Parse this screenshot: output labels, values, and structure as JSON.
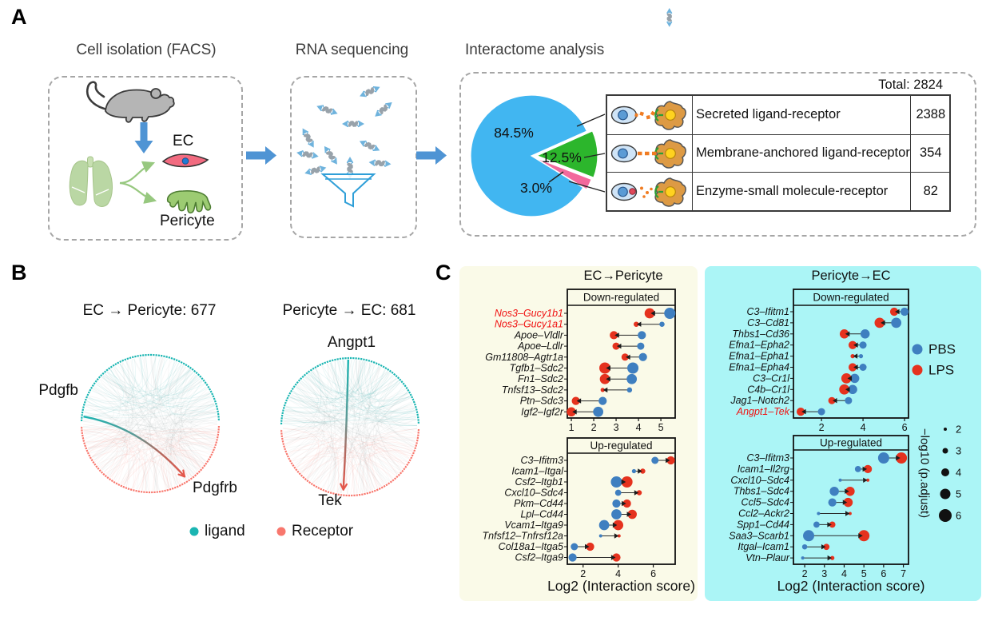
{
  "colors": {
    "pbs_blue": "#3f7fc0",
    "lps_red": "#e5321e",
    "ligand_teal": "#1ab5b2",
    "receptor_salmon": "#f8776d",
    "panel_yellow": "#fafae8",
    "panel_cyan": "#abf5f6",
    "pie_blue": "#41b6f1",
    "pie_green": "#2cb62c",
    "pie_pink": "#f2699c",
    "arrow_blue": "#4f94d4",
    "highlight_gene_red": "#f01212"
  },
  "panels": {
    "a": {
      "label": "A",
      "box1_title": "Cell isolation (FACS)",
      "box2_title": "RNA sequencing",
      "box3_title": "Interactome analysis",
      "ec_label": "EC",
      "pericyte_label": "Pericyte",
      "total_label": "Total: 2824",
      "table": [
        {
          "label": "Secreted ligand-receptor",
          "value": "2388",
          "icon": "secreted-ligand-receptor-icon"
        },
        {
          "label": "Membrane-anchored ligand-receptor",
          "value": "354",
          "icon": "membrane-anchored-ligand-receptor-icon"
        },
        {
          "label": "Enzyme-small molecule-receptor",
          "value": "82",
          "icon": "enzyme-small-molecule-receptor-icon"
        }
      ]
    },
    "b": {
      "label": "B",
      "legend": {
        "ligand": "ligand",
        "receptor": "Receptor"
      }
    },
    "c": {
      "label": "C",
      "left_title": "EC→Pericyte",
      "right_title": "Pericyte→EC",
      "legend": {
        "pbs": "PBS",
        "lps": "LPS",
        "size_title": "−log10 (p.adjust)",
        "sizes": [
          2,
          3,
          4,
          5,
          6
        ]
      }
    }
  },
  "chart_data": [
    {
      "type": "pie",
      "title": "Interactome analysis",
      "total": 2824,
      "categories": [
        "Secreted ligand-receptor",
        "Membrane-anchored ligand-receptor",
        "Enzyme-small molecule-receptor"
      ],
      "values": [
        2388,
        354,
        82
      ],
      "percents": [
        "84.5%",
        "12.5%",
        "3.0%"
      ],
      "colors": [
        "#41b6f1",
        "#2cb62c",
        "#f2699c"
      ]
    },
    {
      "type": "circos",
      "title": "EC → Pericyte: 677",
      "count": 677,
      "ligand": "Pdgfb",
      "receptor": "Pdgfrb"
    },
    {
      "type": "circos",
      "title": "Pericyte → EC: 681",
      "count": 681,
      "ligand": "Angpt1",
      "receptor": "Tek"
    },
    {
      "type": "dot",
      "group": "EC to Pericyte",
      "subtitle": "Down-regulated",
      "xlabel": "",
      "xticks": [
        1,
        2,
        3,
        4,
        5
      ],
      "xlim": [
        0.82,
        5.64
      ],
      "series_names": [
        "PBS",
        "LPS"
      ],
      "size_meaning": "-log10 (p.adjust)",
      "rows": [
        {
          "pair": "Nos3–Gucy1b1",
          "red": true,
          "pbs": 5.4,
          "lps": 4.5,
          "pbs_size": 6,
          "lps_size": 5.5
        },
        {
          "pair": "Nos3–Gucy1a1",
          "red": true,
          "pbs": 5.05,
          "lps": 3.9,
          "pbs_size": 3,
          "lps_size": 3
        },
        {
          "pair": "Apoe–Vldlr",
          "red": false,
          "pbs": 4.15,
          "lps": 2.9,
          "pbs_size": 4.5,
          "lps_size": 4.5
        },
        {
          "pair": "Apoe–Ldlr",
          "red": false,
          "pbs": 4.1,
          "lps": 3.0,
          "pbs_size": 4,
          "lps_size": 4
        },
        {
          "pair": "Gm11808–Agtr1a",
          "red": false,
          "pbs": 4.2,
          "lps": 3.4,
          "pbs_size": 4.5,
          "lps_size": 4
        },
        {
          "pair": "Tgfb1–Sdc2",
          "red": false,
          "pbs": 3.75,
          "lps": 2.5,
          "pbs_size": 6,
          "lps_size": 6
        },
        {
          "pair": "Fn1–Sdc2",
          "red": false,
          "pbs": 3.7,
          "lps": 2.5,
          "pbs_size": 5.5,
          "lps_size": 5.5
        },
        {
          "pair": "Tnfsf13–Sdc2",
          "red": false,
          "pbs": 3.6,
          "lps": 2.4,
          "pbs_size": 3,
          "lps_size": 2.5
        },
        {
          "pair": "Ptn–Sdc3",
          "red": false,
          "pbs": 2.4,
          "lps": 1.2,
          "pbs_size": 4.5,
          "lps_size": 4.5
        },
        {
          "pair": "Igf2–Igf2r",
          "red": false,
          "pbs": 2.2,
          "lps": 1.0,
          "pbs_size": 5.5,
          "lps_size": 5
        }
      ]
    },
    {
      "type": "dot",
      "group": "EC to Pericyte",
      "subtitle": "Up-regulated",
      "xlabel": "Log2 (Interaction score)",
      "xticks": [
        2,
        4,
        6
      ],
      "xlim": [
        1.1,
        7.25
      ],
      "series_names": [
        "PBS",
        "LPS"
      ],
      "size_meaning": "-log10 (p.adjust)",
      "rows": [
        {
          "pair": "C3–Ifitm3",
          "red": false,
          "pbs": 6.1,
          "lps": 7.0,
          "pbs_size": 4,
          "lps_size": 4.5
        },
        {
          "pair": "Icam1–Itgal",
          "red": false,
          "pbs": 4.9,
          "lps": 5.4,
          "pbs_size": 2.5,
          "lps_size": 3
        },
        {
          "pair": "Csf2–Itgb1",
          "red": false,
          "pbs": 3.9,
          "lps": 4.5,
          "pbs_size": 6,
          "lps_size": 6
        },
        {
          "pair": "Cxcl10–Sdc4",
          "red": false,
          "pbs": 4.0,
          "lps": 5.2,
          "pbs_size": 3.5,
          "lps_size": 3
        },
        {
          "pair": "Pkm–Cd44",
          "red": false,
          "pbs": 3.9,
          "lps": 4.5,
          "pbs_size": 4.5,
          "lps_size": 4.5
        },
        {
          "pair": "Lpl–Cd44",
          "red": false,
          "pbs": 3.9,
          "lps": 4.8,
          "pbs_size": 5.5,
          "lps_size": 5
        },
        {
          "pair": "Vcam1–Itga9",
          "red": false,
          "pbs": 3.2,
          "lps": 4.0,
          "pbs_size": 5.5,
          "lps_size": 5.5
        },
        {
          "pair": "Tnfsf12–Tnfrsf12a",
          "red": false,
          "pbs": 3.0,
          "lps": 4.05,
          "pbs_size": 2,
          "lps_size": 2
        },
        {
          "pair": "Col18a1–Itga5",
          "red": false,
          "pbs": 1.5,
          "lps": 2.4,
          "pbs_size": 4,
          "lps_size": 4.5
        },
        {
          "pair": "Csf2–Itga9",
          "red": false,
          "pbs": 1.4,
          "lps": 3.9,
          "pbs_size": 4.5,
          "lps_size": 4.5
        }
      ]
    },
    {
      "type": "dot",
      "group": "Pericyte to EC",
      "subtitle": "Down-regulated",
      "xlabel": "",
      "xticks": [
        2,
        4,
        6
      ],
      "xlim": [
        0.65,
        6.19
      ],
      "series_names": [
        "PBS",
        "LPS"
      ],
      "size_meaning": "-log10 (p.adjust)",
      "rows": [
        {
          "pair": "C3–Ifitm1",
          "red": false,
          "pbs": 6.0,
          "lps": 5.5,
          "pbs_size": 4.5,
          "lps_size": 4.5
        },
        {
          "pair": "C3–Cd81",
          "red": false,
          "pbs": 5.6,
          "lps": 4.8,
          "pbs_size": 5.5,
          "lps_size": 5.5
        },
        {
          "pair": "Thbs1–Cd36",
          "red": false,
          "pbs": 4.1,
          "lps": 3.1,
          "pbs_size": 5,
          "lps_size": 5
        },
        {
          "pair": "Efna1–Epha2",
          "red": false,
          "pbs": 4.0,
          "lps": 3.5,
          "pbs_size": 4,
          "lps_size": 4.5
        },
        {
          "pair": "Efna1–Epha1",
          "red": false,
          "pbs": 3.9,
          "lps": 3.5,
          "pbs_size": 2.5,
          "lps_size": 2.5
        },
        {
          "pair": "Efna1–Epha4",
          "red": false,
          "pbs": 4.0,
          "lps": 3.5,
          "pbs_size": 4,
          "lps_size": 4.5
        },
        {
          "pair": "C3–Cr1l",
          "red": false,
          "pbs": 3.6,
          "lps": 3.2,
          "pbs_size": 5,
          "lps_size": 5.5
        },
        {
          "pair": "C4b–Cr1l",
          "red": false,
          "pbs": 3.5,
          "lps": 3.1,
          "pbs_size": 5,
          "lps_size": 5.5
        },
        {
          "pair": "Jag1–Notch2",
          "red": false,
          "pbs": 3.3,
          "lps": 2.5,
          "pbs_size": 4,
          "lps_size": 4
        },
        {
          "pair": "Angpt1–Tek",
          "red": true,
          "pbs": 2.0,
          "lps": 1.0,
          "pbs_size": 4,
          "lps_size": 4.5
        }
      ]
    },
    {
      "type": "dot",
      "group": "Pericyte to EC",
      "subtitle": "Up-regulated",
      "xlabel": "Log2 (Interaction score)",
      "xticks": [
        2,
        3,
        4,
        5,
        6,
        7
      ],
      "xlim": [
        1.43,
        7.26
      ],
      "series_names": [
        "PBS",
        "LPS"
      ],
      "size_meaning": "-log10 (p.adjust)",
      "rows": [
        {
          "pair": "C3–Ifitm3",
          "red": false,
          "pbs": 6.0,
          "lps": 6.9,
          "pbs_size": 6,
          "lps_size": 6
        },
        {
          "pair": "Icam1–Il2rg",
          "red": false,
          "pbs": 4.7,
          "lps": 5.2,
          "pbs_size": 3.5,
          "lps_size": 4.5
        },
        {
          "pair": "Cxcl10–Sdc4",
          "red": false,
          "pbs": 3.8,
          "lps": 5.2,
          "pbs_size": 2,
          "lps_size": 2
        },
        {
          "pair": "Thbs1–Sdc4",
          "red": false,
          "pbs": 3.5,
          "lps": 4.3,
          "pbs_size": 5,
          "lps_size": 5
        },
        {
          "pair": "Ccl5–Sdc4",
          "red": false,
          "pbs": 3.4,
          "lps": 4.2,
          "pbs_size": 4.5,
          "lps_size": 5
        },
        {
          "pair": "Ccl2–Ackr2",
          "red": false,
          "pbs": 2.7,
          "lps": 4.3,
          "pbs_size": 2,
          "lps_size": 2
        },
        {
          "pair": "Spp1–Cd44",
          "red": false,
          "pbs": 2.6,
          "lps": 3.4,
          "pbs_size": 3.5,
          "lps_size": 3.5
        },
        {
          "pair": "Saa3–Scarb1",
          "red": false,
          "pbs": 2.2,
          "lps": 5.0,
          "pbs_size": 6,
          "lps_size": 6
        },
        {
          "pair": "Itgal–Icam1",
          "red": false,
          "pbs": 2.0,
          "lps": 3.1,
          "pbs_size": 3,
          "lps_size": 3.5
        },
        {
          "pair": "Vtn–Plaur",
          "red": false,
          "pbs": 1.9,
          "lps": 3.4,
          "pbs_size": 2,
          "lps_size": 2.5
        }
      ]
    }
  ]
}
